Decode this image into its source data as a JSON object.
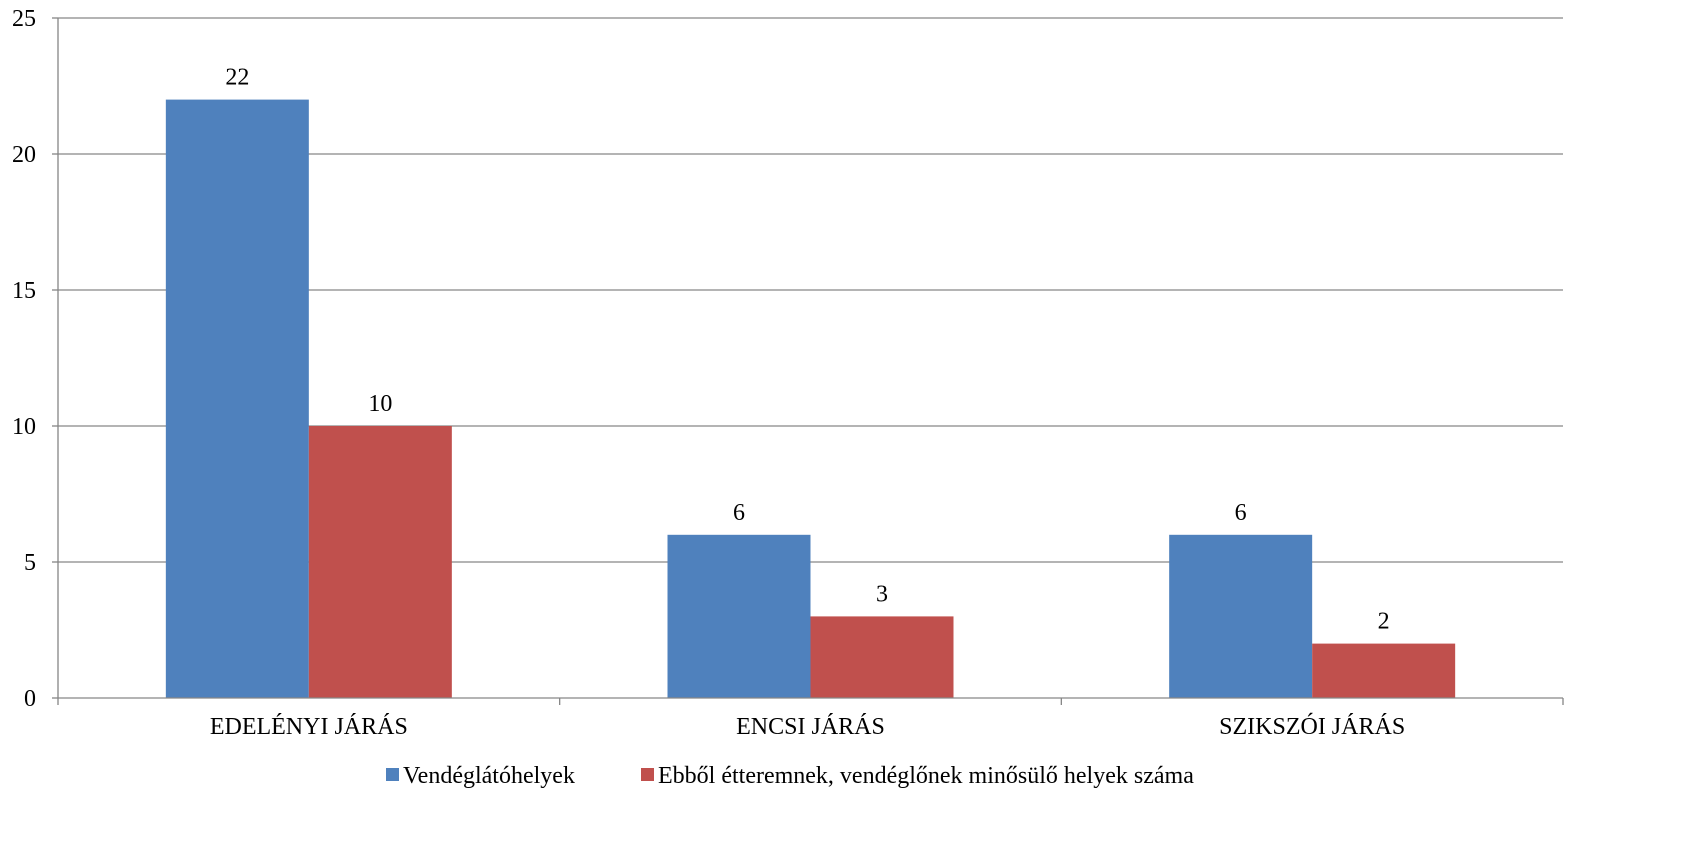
{
  "chart_data": {
    "type": "bar",
    "categories": [
      "EDELÉNYI JÁRÁS",
      "ENCSI JÁRÁS",
      "SZIKSZÓI JÁRÁS"
    ],
    "series": [
      {
        "name": "Vendéglátóhelyek",
        "values": [
          22,
          6,
          6
        ],
        "color": "#4f81bd"
      },
      {
        "name": "Ebből étteremnek, vendéglőnek minősülő helyek száma",
        "values": [
          10,
          3,
          2
        ],
        "color": "#c0504d"
      }
    ],
    "ylim": [
      0,
      25
    ],
    "yticks": [
      0,
      5,
      10,
      15,
      20,
      25
    ],
    "grid": true,
    "legend": "bottom",
    "data_labels": true
  }
}
